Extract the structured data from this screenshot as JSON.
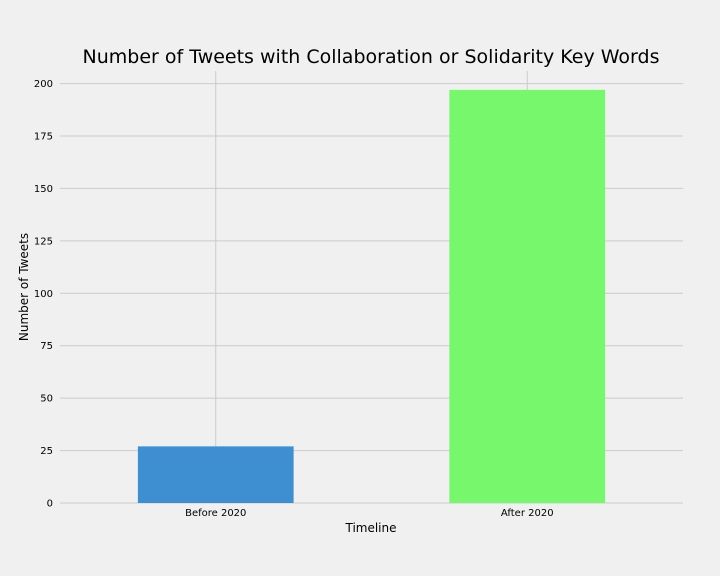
{
  "chart_data": {
    "type": "bar",
    "title": "Number of Tweets with Collaboration or Solidarity Key Words",
    "xlabel": "Timeline",
    "ylabel": "Number of Tweets",
    "categories": [
      "Before 2020",
      "After 2020"
    ],
    "values": [
      27,
      197
    ],
    "bar_colors": [
      "#3d8fd1",
      "#77f76c"
    ],
    "ylim": [
      0,
      206
    ],
    "yticks": [
      0,
      25,
      50,
      75,
      100,
      125,
      150,
      175,
      200
    ],
    "grid": true,
    "legend": "none"
  }
}
